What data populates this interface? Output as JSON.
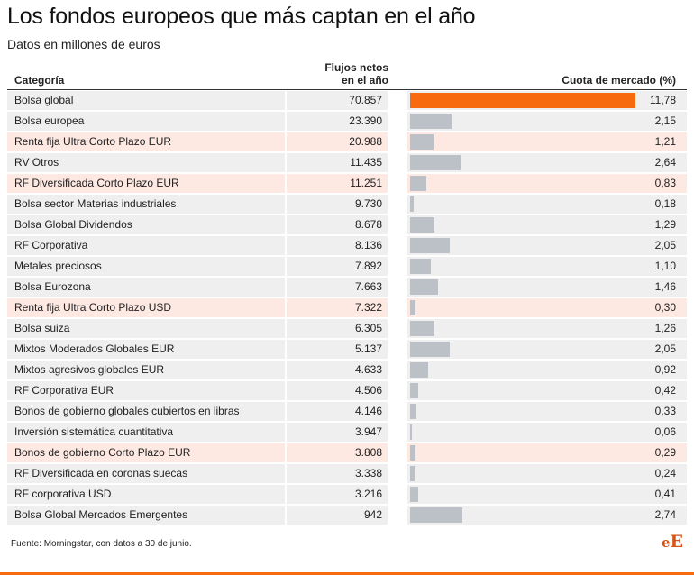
{
  "title": "Los fondos europeos que más captan en el año",
  "subtitle": "Datos en millones de euros",
  "source": "Fuente: Morningstar, con datos a 30 de junio.",
  "logo": {
    "e1": "e",
    "e2": "E"
  },
  "colors": {
    "lead_bar": "#f76b0e",
    "bar": "#bcc1c7",
    "highlight_row": "#fde8e2",
    "row": "#efefef"
  },
  "chart_data": {
    "type": "table",
    "columns": [
      "Categoría",
      "Flujos netos en el año",
      "Cuota de mercado (%)"
    ],
    "xlim": [
      0,
      11.78
    ],
    "rows": [
      {
        "category": "Bolsa global",
        "flow_label": "70.857",
        "flow": 70857,
        "share_label": "11,78",
        "share": 11.78,
        "highlight": false,
        "lead": true
      },
      {
        "category": "Bolsa europea",
        "flow_label": "23.390",
        "flow": 23390,
        "share_label": "2,15",
        "share": 2.15,
        "highlight": false
      },
      {
        "category": "Renta fija Ultra Corto Plazo EUR",
        "flow_label": "20.988",
        "flow": 20988,
        "share_label": "1,21",
        "share": 1.21,
        "highlight": true
      },
      {
        "category": "RV Otros",
        "flow_label": "11.435",
        "flow": 11435,
        "share_label": "2,64",
        "share": 2.64,
        "highlight": false
      },
      {
        "category": "RF Diversificada Corto Plazo EUR",
        "flow_label": "11.251",
        "flow": 11251,
        "share_label": "0,83",
        "share": 0.83,
        "highlight": true
      },
      {
        "category": "Bolsa sector Materias industriales",
        "flow_label": "9.730",
        "flow": 9730,
        "share_label": "0,18",
        "share": 0.18,
        "highlight": false
      },
      {
        "category": "Bolsa Global Dividendos",
        "flow_label": "8.678",
        "flow": 8678,
        "share_label": "1,29",
        "share": 1.29,
        "highlight": false
      },
      {
        "category": "RF Corporativa",
        "flow_label": "8.136",
        "flow": 8136,
        "share_label": "2,05",
        "share": 2.05,
        "highlight": false
      },
      {
        "category": "Metales preciosos",
        "flow_label": "7.892",
        "flow": 7892,
        "share_label": "1,10",
        "share": 1.1,
        "highlight": false
      },
      {
        "category": "Bolsa Eurozona",
        "flow_label": "7.663",
        "flow": 7663,
        "share_label": "1,46",
        "share": 1.46,
        "highlight": false
      },
      {
        "category": "Renta fija Ultra Corto Plazo USD",
        "flow_label": "7.322",
        "flow": 7322,
        "share_label": "0,30",
        "share": 0.3,
        "highlight": true
      },
      {
        "category": "Bolsa suiza",
        "flow_label": "6.305",
        "flow": 6305,
        "share_label": "1,26",
        "share": 1.26,
        "highlight": false
      },
      {
        "category": "Mixtos Moderados Globales EUR",
        "flow_label": "5.137",
        "flow": 5137,
        "share_label": "2,05",
        "share": 2.05,
        "highlight": false
      },
      {
        "category": "Mixtos agresivos globales EUR",
        "flow_label": "4.633",
        "flow": 4633,
        "share_label": "0,92",
        "share": 0.92,
        "highlight": false
      },
      {
        "category": "RF Corporativa EUR",
        "flow_label": "4.506",
        "flow": 4506,
        "share_label": "0,42",
        "share": 0.42,
        "highlight": false
      },
      {
        "category": "Bonos de gobierno globales cubiertos en libras",
        "flow_label": "4.146",
        "flow": 4146,
        "share_label": "0,33",
        "share": 0.33,
        "highlight": false
      },
      {
        "category": "Inversión sistemática cuantitativa",
        "flow_label": "3.947",
        "flow": 3947,
        "share_label": "0,06",
        "share": 0.06,
        "highlight": false
      },
      {
        "category": "Bonos de gobierno Corto Plazo EUR",
        "flow_label": "3.808",
        "flow": 3808,
        "share_label": "0,29",
        "share": 0.29,
        "highlight": true
      },
      {
        "category": "RF Diversificada en coronas suecas",
        "flow_label": "3.338",
        "flow": 3338,
        "share_label": "0,24",
        "share": 0.24,
        "highlight": false
      },
      {
        "category": "RF corporativa USD",
        "flow_label": "3.216",
        "flow": 3216,
        "share_label": "0,41",
        "share": 0.41,
        "highlight": false
      },
      {
        "category": "Bolsa Global  Mercados Emergentes",
        "flow_label": "942",
        "flow": 942,
        "share_label": "2,74",
        "share": 2.74,
        "highlight": false
      }
    ]
  }
}
